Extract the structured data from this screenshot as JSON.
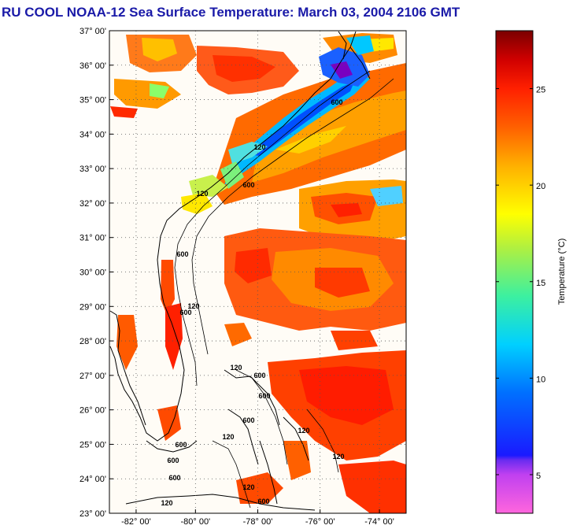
{
  "title": "RU COOL  NOAA-12  Sea Surface Temperature:  March 03, 2004 2106 GMT",
  "map": {
    "lat_labels": [
      "37° 00'",
      "36° 00'",
      "35° 00'",
      "34° 00'",
      "33° 00'",
      "32° 00'",
      "31° 00'",
      "30° 00'",
      "29° 00'",
      "28° 00'",
      "27° 00'",
      "26° 00'",
      "25° 00'",
      "24° 00'",
      "23° 00'"
    ],
    "lon_labels": [
      "-82° 00'",
      "-80° 00'",
      "-78° 00'",
      "-76° 00'",
      "-74° 00'"
    ],
    "contour_labels": [
      "600",
      "120",
      "600",
      "120",
      "600",
      "120",
      "600",
      "120",
      "600",
      "600",
      "600",
      "120",
      "600",
      "120",
      "600",
      "120",
      "600",
      "120",
      "600",
      "120"
    ]
  },
  "colorbar": {
    "axis_label": "Temperature (°C)",
    "ticks": [
      "25",
      "20",
      "15",
      "10",
      "5"
    ],
    "range": [
      3,
      28
    ],
    "colors": [
      "#ff66dd",
      "#9b3cf0",
      "#1a1aff",
      "#00aaff",
      "#00e8e0",
      "#7cf07c",
      "#ffff00",
      "#ffa500",
      "#ff3300",
      "#d60000",
      "#7a0000"
    ]
  }
}
